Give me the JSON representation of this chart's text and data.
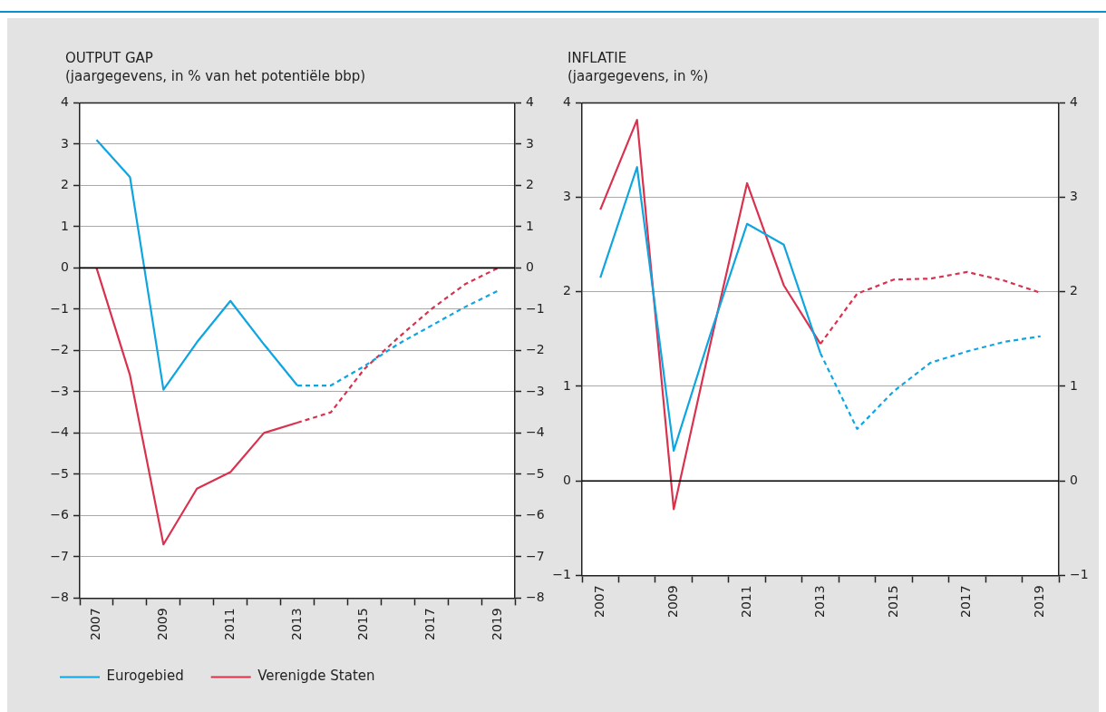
{
  "chart_data": [
    {
      "type": "line",
      "title": "OUTPUT GAP",
      "subtitle": "(jaargegevens, in % van het potentiële bbp)",
      "categories": [
        "2007",
        null,
        "2009",
        null,
        "2011",
        null,
        "2013",
        null,
        "2015",
        null,
        "2017",
        null,
        "2019"
      ],
      "series": [
        {
          "name": "Eurogebied",
          "color": "#0ea5e0",
          "line_style": "solid",
          "values": [
            3.1,
            2.2,
            -2.95,
            -1.8,
            -0.8,
            -1.85,
            -2.85,
            null,
            null,
            null,
            null,
            null,
            null
          ]
        },
        {
          "name": "Verenigde Staten",
          "color": "#d9324f",
          "line_style": "solid",
          "values": [
            0,
            -2.6,
            -6.7,
            -5.35,
            -4.95,
            -4.0,
            -3.75,
            null,
            null,
            null,
            null,
            null,
            null
          ]
        },
        {
          "color": "#0ea5e0",
          "line_style": "dashed",
          "values": [
            null,
            null,
            null,
            null,
            null,
            null,
            -2.85,
            -2.85,
            -2.38,
            -1.85,
            -1.4,
            -0.95,
            -0.55
          ]
        },
        {
          "color": "#d9324f",
          "line_style": "dashed",
          "values": [
            null,
            null,
            null,
            null,
            null,
            null,
            -3.75,
            -3.5,
            -2.45,
            -1.7,
            -1.0,
            -0.4,
            0.0
          ]
        }
      ],
      "ylim": [
        -8,
        4
      ],
      "yticks": [
        {
          "value": -8,
          "label": "−8"
        },
        {
          "value": -7,
          "label": "−7"
        },
        {
          "value": -6,
          "label": "−6"
        },
        {
          "value": -5,
          "label": "−5"
        },
        {
          "value": -4,
          "label": "−4"
        },
        {
          "value": -3,
          "label": "−3"
        },
        {
          "value": -2,
          "label": "−2"
        },
        {
          "value": -1,
          "label": "−1"
        },
        0,
        1,
        2,
        3,
        4
      ],
      "y2lim": [
        -8,
        4
      ],
      "y2ticks": [
        {
          "value": -8,
          "label": "−8"
        },
        {
          "value": -7,
          "label": "−7"
        },
        {
          "value": -6,
          "label": "−6"
        },
        {
          "value": -5,
          "label": "−5"
        },
        {
          "value": -4,
          "label": "−4"
        },
        {
          "value": -3,
          "label": "−3"
        },
        {
          "value": -2,
          "label": "−2"
        },
        {
          "value": -1,
          "label": "−1"
        },
        0,
        1,
        2,
        3,
        4
      ],
      "ref_lines": [
        {
          "axis": "y",
          "value": 0,
          "color": "#000000"
        }
      ],
      "grid": "y",
      "legend": "bottom",
      "marker": "none"
    },
    {
      "type": "line",
      "title": "INFLATIE",
      "subtitle": "(jaargegevens, in %)",
      "categories": [
        "2007",
        null,
        "2009",
        null,
        "2011",
        null,
        "2013",
        null,
        "2015",
        null,
        "2017",
        null,
        "2019"
      ],
      "series": [
        {
          "color": "#0ea5e0",
          "line_style": "solid",
          "values": [
            2.15,
            3.32,
            0.32,
            1.55,
            2.72,
            2.5,
            1.35,
            null,
            null,
            null,
            null,
            null,
            null
          ]
        },
        {
          "color": "#d9324f",
          "line_style": "solid",
          "values": [
            2.87,
            3.82,
            -0.3,
            1.45,
            3.15,
            2.07,
            1.45,
            null,
            null,
            null,
            null,
            null,
            null
          ]
        },
        {
          "color": "#0ea5e0",
          "line_style": "dashed",
          "values": [
            null,
            null,
            null,
            null,
            null,
            null,
            1.35,
            0.55,
            0.95,
            1.25,
            1.37,
            1.47,
            1.53
          ]
        },
        {
          "color": "#d9324f",
          "line_style": "dashed",
          "values": [
            null,
            null,
            null,
            null,
            null,
            null,
            1.45,
            1.98,
            2.13,
            2.14,
            2.21,
            2.12,
            1.99
          ]
        }
      ],
      "ylim": [
        -1,
        4
      ],
      "yticks": [
        {
          "value": -1,
          "label": "−1"
        },
        0,
        1,
        2,
        3,
        4
      ],
      "y2lim": [
        -1,
        4
      ],
      "y2ticks": [
        {
          "value": -1,
          "label": "−1"
        },
        0,
        1,
        2,
        3,
        4
      ],
      "ref_lines": [
        {
          "axis": "y",
          "value": 0,
          "color": "#000000"
        }
      ],
      "grid": "y",
      "marker": "none"
    }
  ]
}
